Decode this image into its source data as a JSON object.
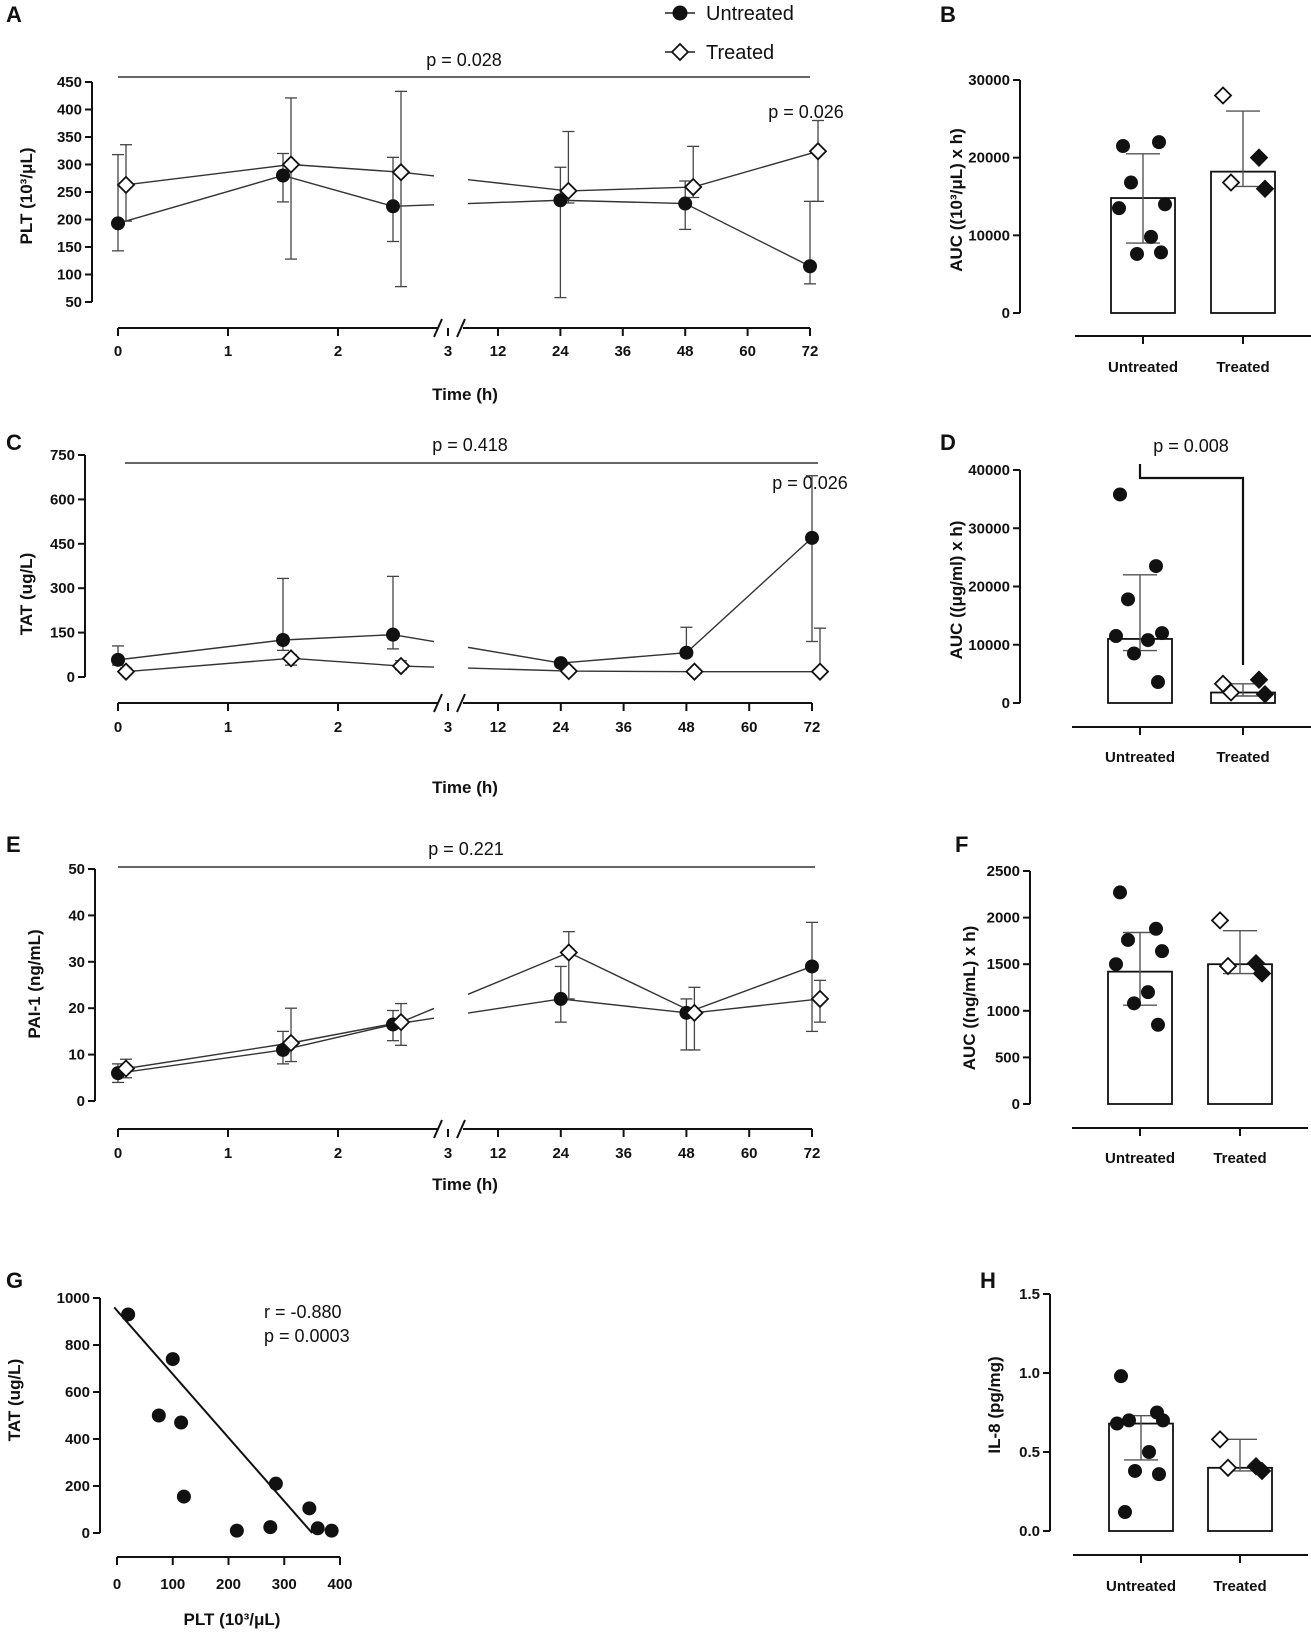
{
  "legend": {
    "untreated": "Untreated",
    "treated": "Treated"
  },
  "panels": {
    "A": {
      "letter": "A",
      "ylabel": "PLT (10³/μL)",
      "xlabel": "Time (h)",
      "p_overall": "p = 0.028",
      "p_point": "p = 0.026"
    },
    "B": {
      "letter": "B",
      "ylabel": "AUC ((10³/μL) x h)"
    },
    "C": {
      "letter": "C",
      "ylabel": "TAT (ug/L)",
      "xlabel": "Time (h)",
      "p_overall": "p = 0.418",
      "p_point": "p = 0.026"
    },
    "D": {
      "letter": "D",
      "ylabel": "AUC ((μg/ml) x h)",
      "p_compare": "p = 0.008"
    },
    "E": {
      "letter": "E",
      "ylabel": "PAI-1 (ng/mL)",
      "xlabel": "Time (h)",
      "p_overall": "p = 0.221"
    },
    "F": {
      "letter": "F",
      "ylabel": "AUC ((ng/mL) x h)"
    },
    "G": {
      "letter": "G",
      "ylabel": "TAT (ug/L)",
      "xlabel": "PLT (10³/μL)",
      "r_text": "r = -0.880",
      "p_text": "p = 0.0003"
    },
    "H": {
      "letter": "H",
      "ylabel": "IL-8 (pg/mg)"
    }
  },
  "chart_data": [
    {
      "id": "A",
      "type": "line",
      "x_ticks": [
        "0",
        "1",
        "2",
        "3",
        "12",
        "24",
        "36",
        "48",
        "60",
        "72"
      ],
      "x_break_between": [
        "3",
        "12"
      ],
      "ylim": [
        50,
        450
      ],
      "yticks": [
        50,
        100,
        150,
        200,
        250,
        300,
        350,
        400,
        450
      ],
      "series": [
        {
          "name": "Untreated",
          "times": [
            0,
            1.5,
            2.5,
            24,
            48,
            72
          ],
          "values": [
            193,
            280,
            224,
            235,
            229,
            115
          ],
          "err_low": [
            143,
            232,
            160,
            58,
            182,
            83
          ],
          "err_high": [
            318,
            320,
            313,
            295,
            270,
            233
          ]
        },
        {
          "name": "Treated",
          "times": [
            0,
            1.5,
            2.5,
            24,
            48,
            72
          ],
          "values": [
            263,
            300,
            286,
            252,
            259,
            324
          ],
          "err_low": [
            197,
            128,
            78,
            230,
            240,
            233
          ],
          "err_high": [
            336,
            421,
            433,
            360,
            333,
            380
          ]
        }
      ]
    },
    {
      "id": "B",
      "type": "bar",
      "categories": [
        "Untreated",
        "Treated"
      ],
      "ylim": [
        0,
        30000
      ],
      "yticks": [
        0,
        10000,
        20000,
        30000
      ],
      "bars": [
        14800,
        18200
      ],
      "err_low": [
        9000,
        16300
      ],
      "err_high": [
        20500,
        26000
      ],
      "points": [
        [
          21500,
          22000,
          16800,
          14000,
          13500,
          9800,
          7600,
          7800
        ],
        [
          28000,
          20000,
          16800,
          16000
        ]
      ]
    },
    {
      "id": "C",
      "type": "line",
      "x_ticks": [
        "0",
        "1",
        "2",
        "3",
        "12",
        "24",
        "36",
        "48",
        "60",
        "72"
      ],
      "x_break_between": [
        "3",
        "12"
      ],
      "ylim": [
        0,
        750
      ],
      "yticks": [
        0,
        150,
        300,
        450,
        600,
        750
      ],
      "series": [
        {
          "name": "Untreated",
          "times": [
            0,
            1.5,
            2.5,
            24,
            48,
            72
          ],
          "values": [
            58,
            125,
            143,
            47,
            82,
            470
          ],
          "err_low": [
            40,
            90,
            95,
            38,
            70,
            120
          ],
          "err_high": [
            105,
            333,
            340,
            55,
            168,
            680
          ]
        },
        {
          "name": "Treated",
          "times": [
            0,
            1.5,
            2.5,
            24,
            48,
            72
          ],
          "values": [
            18,
            63,
            37,
            20,
            18,
            18
          ],
          "err_low": [
            10,
            40,
            25,
            10,
            10,
            10
          ],
          "err_high": [
            30,
            75,
            55,
            28,
            28,
            165
          ]
        }
      ]
    },
    {
      "id": "D",
      "type": "bar",
      "categories": [
        "Untreated",
        "Treated"
      ],
      "ylim": [
        0,
        40000
      ],
      "yticks": [
        0,
        10000,
        20000,
        30000,
        40000
      ],
      "bars": [
        11000,
        1800
      ],
      "err_low": [
        9000,
        1200
      ],
      "err_high": [
        22000,
        3300
      ],
      "points": [
        [
          35800,
          23500,
          17800,
          12000,
          11500,
          10800,
          8500,
          3600
        ],
        [
          3300,
          4000,
          1800,
          1500
        ]
      ]
    },
    {
      "id": "E",
      "type": "line",
      "x_ticks": [
        "0",
        "1",
        "2",
        "3",
        "12",
        "24",
        "36",
        "48",
        "60",
        "72"
      ],
      "x_break_between": [
        "3",
        "12"
      ],
      "ylim": [
        0,
        50
      ],
      "yticks": [
        0,
        10,
        20,
        30,
        40,
        50
      ],
      "series": [
        {
          "name": "Untreated",
          "times": [
            0,
            1.5,
            2.5,
            24,
            48,
            72
          ],
          "values": [
            6,
            11,
            16.5,
            22,
            19,
            29
          ],
          "err_low": [
            4,
            8,
            13,
            17,
            11,
            15
          ],
          "err_high": [
            8,
            15,
            19.5,
            29,
            22,
            38.5
          ]
        },
        {
          "name": "Treated",
          "times": [
            0,
            1.5,
            2.5,
            24,
            48,
            72
          ],
          "values": [
            7,
            12.5,
            17,
            32,
            19,
            22
          ],
          "err_low": [
            5,
            8.5,
            12,
            22,
            11,
            17
          ],
          "err_high": [
            9,
            20,
            21,
            36.5,
            24.5,
            26
          ]
        }
      ]
    },
    {
      "id": "F",
      "type": "bar",
      "categories": [
        "Untreated",
        "Treated"
      ],
      "ylim": [
        0,
        2500
      ],
      "yticks": [
        0,
        500,
        1000,
        1500,
        2000,
        2500
      ],
      "bars": [
        1420,
        1500
      ],
      "err_low": [
        1060,
        1400
      ],
      "err_high": [
        1840,
        1860
      ],
      "points": [
        [
          2270,
          1880,
          1760,
          1640,
          1500,
          1200,
          1080,
          850
        ],
        [
          1970,
          1510,
          1480,
          1400
        ]
      ]
    },
    {
      "id": "G",
      "type": "scatter",
      "xlim": [
        0,
        400
      ],
      "ylim": [
        0,
        1000
      ],
      "xticks": [
        0,
        100,
        200,
        300,
        400
      ],
      "yticks": [
        0,
        200,
        400,
        600,
        800,
        1000
      ],
      "x": [
        20,
        100,
        75,
        115,
        120,
        215,
        275,
        285,
        345,
        360,
        385
      ],
      "y": [
        930,
        740,
        500,
        470,
        155,
        10,
        25,
        210,
        105,
        20,
        10
      ],
      "fit": {
        "x": [
          -5,
          350
        ],
        "y": [
          960,
          0
        ]
      }
    },
    {
      "id": "H",
      "type": "bar",
      "categories": [
        "Untreated",
        "Treated"
      ],
      "ylim": [
        0,
        1.5
      ],
      "yticks": [
        0.0,
        0.5,
        1.0,
        1.5
      ],
      "ytick_labels": [
        "0.0",
        "0.5",
        "1.0",
        "1.5"
      ],
      "bars": [
        0.68,
        0.4
      ],
      "err_low": [
        0.45,
        0.38
      ],
      "err_high": [
        0.73,
        0.58
      ],
      "points": [
        [
          0.98,
          0.75,
          0.7,
          0.7,
          0.68,
          0.5,
          0.38,
          0.36,
          0.12
        ],
        [
          0.58,
          0.41,
          0.4,
          0.38
        ]
      ]
    }
  ]
}
